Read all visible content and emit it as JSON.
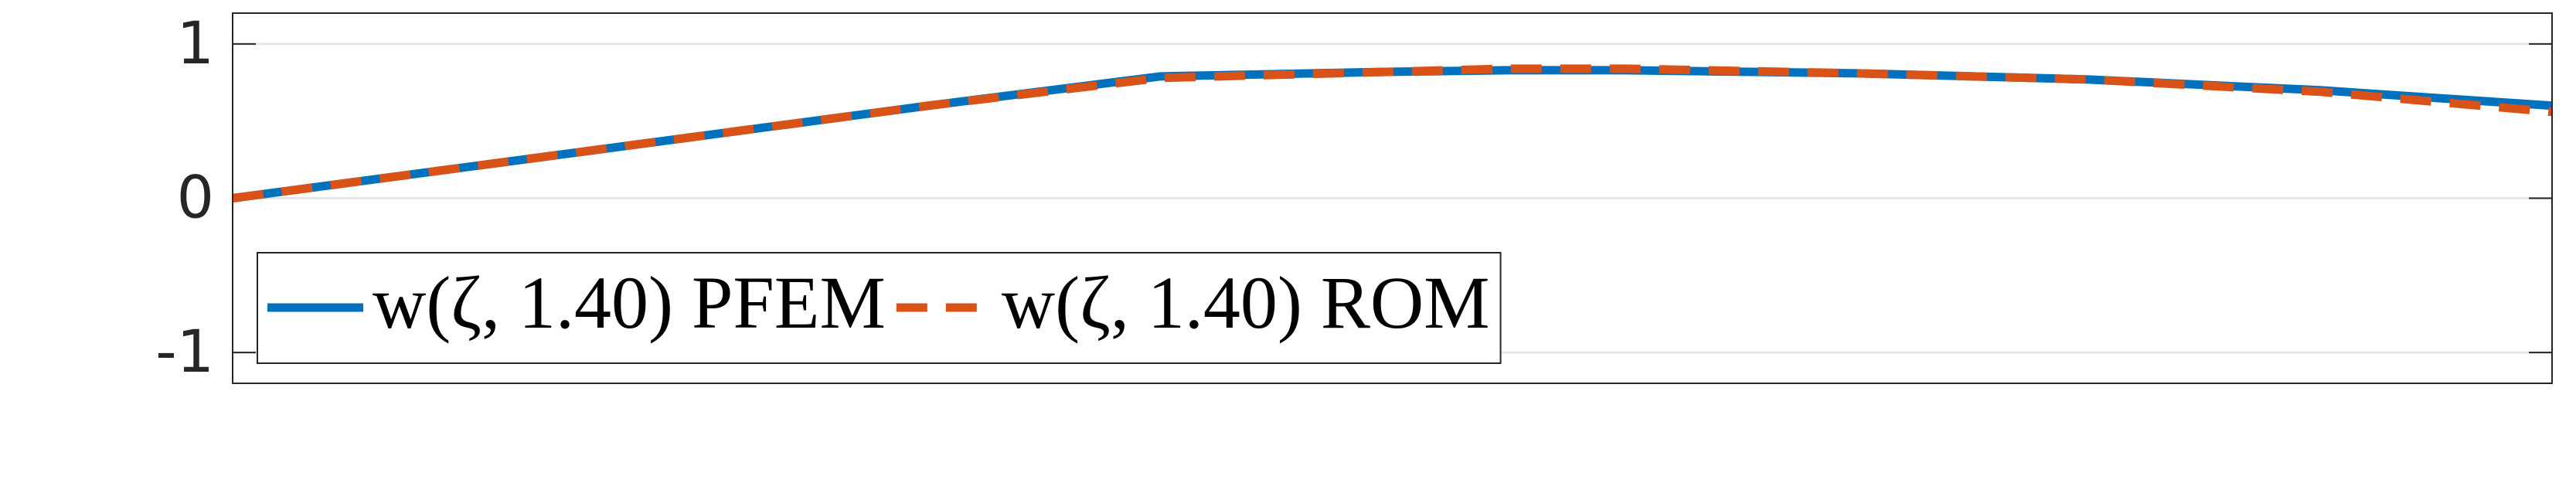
{
  "chart_data": {
    "type": "line",
    "x": [
      0,
      0.1,
      0.2,
      0.3,
      0.4,
      0.5,
      0.55,
      0.6,
      0.7,
      0.8,
      0.9,
      1.0
    ],
    "series": [
      {
        "name": "w(ζ, 1.40) PFEM",
        "color": "#0072BD",
        "line_style": "solid",
        "values": [
          0,
          0.2,
          0.4,
          0.6,
          0.79,
          0.82,
          0.83,
          0.83,
          0.81,
          0.77,
          0.7,
          0.6
        ]
      },
      {
        "name": "w(ζ, 1.40) ROM",
        "color": "#D95319",
        "line_style": "dashed",
        "values": [
          0,
          0.2,
          0.4,
          0.6,
          0.78,
          0.82,
          0.84,
          0.84,
          0.81,
          0.77,
          0.69,
          0.56
        ]
      }
    ],
    "xlim": [
      0,
      1.0
    ],
    "ylim": [
      -1.2,
      1.2
    ],
    "yticks": [
      {
        "value": -1,
        "label": "-1"
      },
      0,
      1
    ],
    "grid": true,
    "legend": "lower left"
  }
}
